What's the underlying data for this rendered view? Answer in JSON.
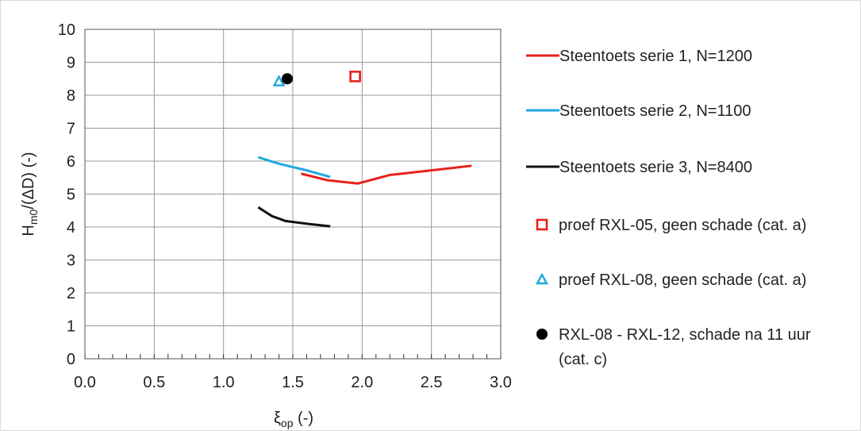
{
  "chart_data": {
    "type": "line",
    "xlabel": {
      "main": "ξ",
      "sub": "op",
      "unit": "(-)"
    },
    "ylabel": {
      "main": "H",
      "sub": "m0",
      "rest": "/(ΔD)",
      "unit": "(-)"
    },
    "xlim": [
      0,
      3
    ],
    "ylim": [
      0,
      10
    ],
    "x_ticks": [
      "0.0",
      "0.5",
      "1.0",
      "1.5",
      "2.0",
      "2.5",
      "3.0"
    ],
    "y_ticks": [
      "0",
      "1",
      "2",
      "3",
      "4",
      "5",
      "6",
      "7",
      "8",
      "9",
      "10"
    ],
    "grid": true,
    "legend_position": "right",
    "series": [
      {
        "name": "Steentoets serie 1, N=1200",
        "kind": "line",
        "color": "#e8201a",
        "points": [
          [
            1.56,
            5.62
          ],
          [
            1.75,
            5.42
          ],
          [
            1.97,
            5.32
          ],
          [
            2.2,
            5.58
          ],
          [
            2.5,
            5.72
          ],
          [
            2.79,
            5.86
          ]
        ]
      },
      {
        "name": "Steentoets serie 2, N=1100",
        "kind": "line",
        "color": "#1fa8e0",
        "points": [
          [
            1.25,
            6.12
          ],
          [
            1.4,
            5.92
          ],
          [
            1.6,
            5.72
          ],
          [
            1.77,
            5.52
          ]
        ]
      },
      {
        "name": "Steentoets serie 3, N=8400",
        "kind": "line",
        "color": "#111111",
        "points": [
          [
            1.25,
            4.6
          ],
          [
            1.35,
            4.33
          ],
          [
            1.45,
            4.18
          ],
          [
            1.6,
            4.1
          ],
          [
            1.77,
            4.02
          ]
        ]
      },
      {
        "name": "proef RXL-05, geen schade (cat. a)",
        "kind": "marker-square",
        "color": "#e8201a",
        "points": [
          [
            1.95,
            8.57
          ]
        ]
      },
      {
        "name": "proef RXL-08, geen schade (cat. a)",
        "kind": "marker-triangle",
        "color": "#1fa8e0",
        "points": [
          [
            1.4,
            8.42
          ]
        ]
      },
      {
        "name_lines": [
          "RXL-08 - RXL-12, schade na 11 uur",
          "(cat. c)"
        ],
        "kind": "marker-circle",
        "color": "#000000",
        "points": [
          [
            1.46,
            8.5
          ]
        ]
      }
    ]
  }
}
